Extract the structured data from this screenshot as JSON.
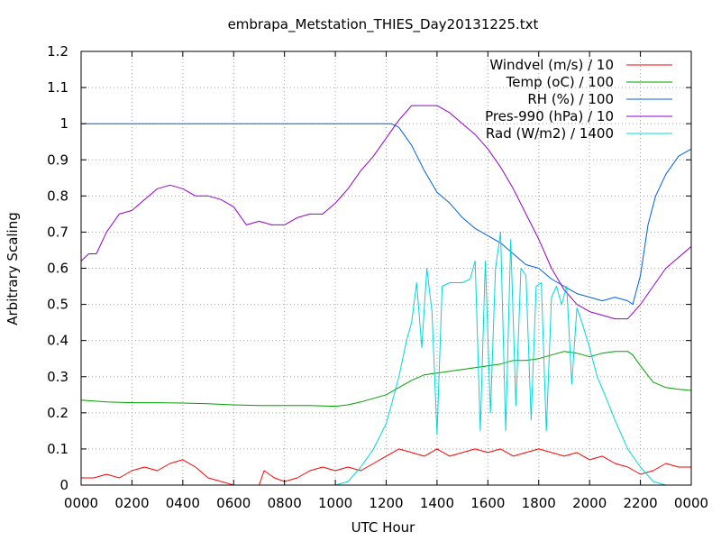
{
  "chart_data": {
    "type": "line",
    "title": "embrapa_Metstation_THIES_Day20131225.txt",
    "xlabel": "UTC Hour",
    "ylabel": "Arbitrary Scaling",
    "xlim": [
      0,
      24
    ],
    "ylim": [
      0,
      1.2
    ],
    "grid": true,
    "legend_position": "top-right",
    "x_tick_labels": [
      "0000",
      "0200",
      "0400",
      "0600",
      "0800",
      "1000",
      "1200",
      "1400",
      "1600",
      "1800",
      "2000",
      "2200",
      "0000"
    ],
    "y_tick_labels": [
      "0",
      "0.1",
      "0.2",
      "0.3",
      "0.4",
      "0.5",
      "0.6",
      "0.7",
      "0.8",
      "0.9",
      "1",
      "1.1",
      "1.2"
    ],
    "series": [
      {
        "name": "Windvel (m/s) / 10",
        "color": "#ff0000",
        "x": [
          0,
          0.5,
          1,
          1.5,
          2,
          2.5,
          3,
          3.5,
          4,
          4.5,
          5,
          6,
          7,
          7.2,
          7.6,
          8,
          8.5,
          9,
          9.5,
          10,
          10.5,
          11,
          11.5,
          12,
          12.5,
          13,
          13.5,
          14,
          14.5,
          15,
          15.5,
          16,
          16.5,
          17,
          17.5,
          18,
          18.5,
          19,
          19.5,
          20,
          20.5,
          21,
          21.5,
          22,
          22.5,
          23,
          23.5,
          24
        ],
        "values": [
          0.02,
          0.02,
          0.03,
          0.02,
          0.04,
          0.05,
          0.04,
          0.06,
          0.07,
          0.05,
          0.02,
          0.0,
          0.0,
          0.04,
          0.02,
          0.01,
          0.02,
          0.04,
          0.05,
          0.04,
          0.05,
          0.04,
          0.06,
          0.08,
          0.1,
          0.09,
          0.08,
          0.1,
          0.08,
          0.09,
          0.1,
          0.09,
          0.1,
          0.08,
          0.09,
          0.1,
          0.09,
          0.08,
          0.09,
          0.07,
          0.08,
          0.06,
          0.05,
          0.03,
          0.04,
          0.06,
          0.05,
          0.05
        ]
      },
      {
        "name": "Temp (oC) / 100",
        "color": "#00a000",
        "x": [
          0,
          1,
          2,
          3,
          4,
          5,
          6,
          7,
          8,
          9,
          10,
          10.5,
          11,
          11.5,
          12,
          12.5,
          13,
          13.5,
          14,
          14.5,
          15,
          15.5,
          16,
          16.5,
          17,
          17.5,
          18,
          18.5,
          19,
          19.5,
          20,
          20.5,
          21,
          21.5,
          21.7,
          22,
          22.5,
          23,
          23.5,
          24
        ],
        "values": [
          0.235,
          0.23,
          0.228,
          0.228,
          0.227,
          0.225,
          0.222,
          0.22,
          0.22,
          0.22,
          0.218,
          0.222,
          0.23,
          0.24,
          0.25,
          0.27,
          0.29,
          0.305,
          0.31,
          0.315,
          0.32,
          0.325,
          0.33,
          0.335,
          0.345,
          0.345,
          0.35,
          0.36,
          0.37,
          0.365,
          0.355,
          0.365,
          0.37,
          0.37,
          0.36,
          0.33,
          0.285,
          0.27,
          0.265,
          0.262
        ]
      },
      {
        "name": "RH (%) / 100",
        "color": "#0060e0",
        "x": [
          0,
          2,
          4,
          6,
          8,
          10,
          12,
          12.2,
          12.5,
          13,
          13.5,
          14,
          14.5,
          15,
          15.5,
          16,
          16.5,
          17,
          17.5,
          18,
          18.5,
          19,
          19.5,
          20,
          20.5,
          21,
          21.5,
          21.7,
          22,
          22.3,
          22.6,
          23,
          23.5,
          24
        ],
        "values": [
          1,
          1,
          1,
          1,
          1,
          1,
          1,
          1,
          0.99,
          0.94,
          0.87,
          0.81,
          0.78,
          0.74,
          0.71,
          0.69,
          0.67,
          0.64,
          0.61,
          0.6,
          0.57,
          0.55,
          0.53,
          0.52,
          0.51,
          0.52,
          0.51,
          0.5,
          0.58,
          0.72,
          0.8,
          0.86,
          0.91,
          0.93
        ]
      },
      {
        "name": "Pres-990 (hPa) / 10",
        "color": "#9400d3",
        "x": [
          0,
          0.3,
          0.6,
          1,
          1.5,
          2,
          2.5,
          3,
          3.5,
          4,
          4.5,
          5,
          5.5,
          6,
          6.5,
          7,
          7.5,
          8,
          8.5,
          9,
          9.5,
          10,
          10.5,
          11,
          11.5,
          12,
          12.5,
          13,
          13.5,
          14,
          14.5,
          15,
          15.5,
          16,
          16.5,
          17,
          17.5,
          18,
          18.5,
          19,
          19.5,
          20,
          20.5,
          21,
          21.5,
          22,
          22.5,
          23,
          23.5,
          24
        ],
        "values": [
          0.62,
          0.64,
          0.64,
          0.7,
          0.75,
          0.76,
          0.79,
          0.82,
          0.83,
          0.82,
          0.8,
          0.8,
          0.79,
          0.77,
          0.72,
          0.73,
          0.72,
          0.72,
          0.74,
          0.75,
          0.75,
          0.78,
          0.82,
          0.87,
          0.91,
          0.96,
          1.01,
          1.05,
          1.05,
          1.05,
          1.03,
          1.0,
          0.97,
          0.93,
          0.88,
          0.82,
          0.75,
          0.68,
          0.6,
          0.54,
          0.5,
          0.48,
          0.47,
          0.46,
          0.46,
          0.5,
          0.55,
          0.6,
          0.63,
          0.66
        ]
      },
      {
        "name": "Rad (W/m2) / 1400",
        "color": "#00d8d8",
        "x": [
          0,
          9,
          10,
          10.5,
          11,
          11.5,
          12,
          12.2,
          12.5,
          12.8,
          13,
          13.2,
          13.4,
          13.6,
          13.8,
          14,
          14.2,
          14.5,
          15,
          15.3,
          15.5,
          15.7,
          15.9,
          16.1,
          16.3,
          16.5,
          16.7,
          16.9,
          17.1,
          17.3,
          17.5,
          17.7,
          17.9,
          18.1,
          18.3,
          18.5,
          18.7,
          18.9,
          19.1,
          19.3,
          19.5,
          19.7,
          20,
          20.3,
          20.6,
          21,
          21.5,
          22,
          22.5,
          23,
          24
        ],
        "values": [
          0,
          0,
          0,
          0.01,
          0.05,
          0.1,
          0.17,
          0.22,
          0.3,
          0.4,
          0.45,
          0.56,
          0.38,
          0.6,
          0.48,
          0.14,
          0.55,
          0.56,
          0.56,
          0.57,
          0.62,
          0.15,
          0.62,
          0.2,
          0.6,
          0.7,
          0.15,
          0.68,
          0.22,
          0.6,
          0.58,
          0.18,
          0.55,
          0.56,
          0.15,
          0.52,
          0.55,
          0.5,
          0.55,
          0.28,
          0.49,
          0.45,
          0.38,
          0.3,
          0.25,
          0.18,
          0.1,
          0.05,
          0.01,
          0.0,
          0.0
        ]
      }
    ]
  }
}
